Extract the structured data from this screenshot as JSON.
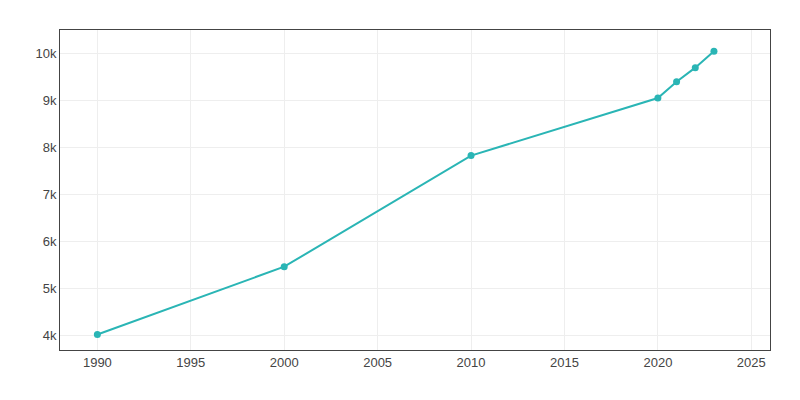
{
  "chart_data": {
    "type": "line",
    "x": [
      1990,
      2000,
      2010,
      2020,
      2021,
      2022,
      2023
    ],
    "values": [
      4028,
      5470,
      7831,
      9054,
      9400,
      9700,
      10050
    ],
    "color": "#2ab5b5",
    "marker": "circle",
    "line_style": "solid",
    "xlim": [
      1988,
      2026
    ],
    "xticks": [
      1990,
      1995,
      2000,
      2005,
      2010,
      2015,
      2020,
      2025
    ],
    "ylim": [
      3700,
      10500
    ],
    "yticks": [
      {
        "value": 4000,
        "label": "4k"
      },
      {
        "value": 5000,
        "label": "5k"
      },
      {
        "value": 6000,
        "label": "6k"
      },
      {
        "value": 7000,
        "label": "7k"
      },
      {
        "value": 8000,
        "label": "8k"
      },
      {
        "value": 9000,
        "label": "9k"
      },
      {
        "value": 10000,
        "label": "10k"
      }
    ],
    "grid": true
  }
}
